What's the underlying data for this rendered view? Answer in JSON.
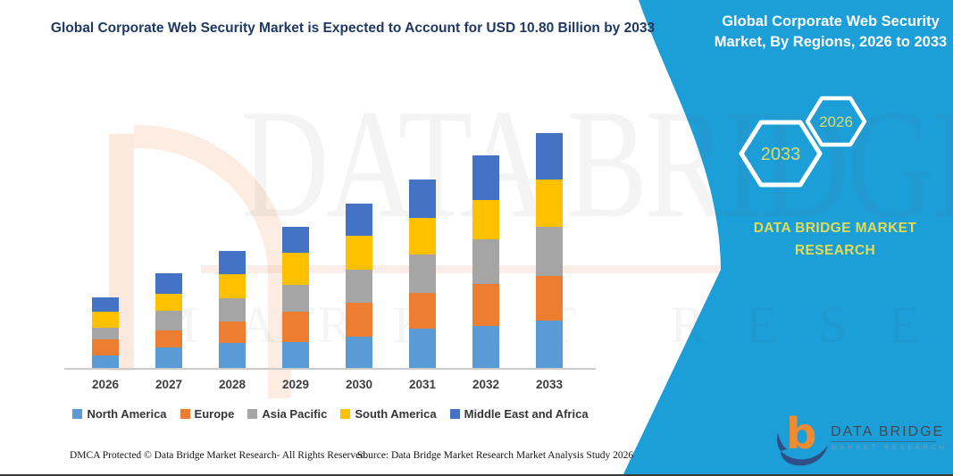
{
  "header": {
    "left_title": "Global Corporate Web Security Market is Expected to Account for USD 10.80 Billion by 2033",
    "right_title": "Global Corporate Web Security Market, By Regions, 2026 to 2033"
  },
  "side_panel": {
    "hexagons": [
      {
        "label": "2033"
      },
      {
        "label": "2026"
      }
    ],
    "brand_line1": "DATA BRIDGE MARKET",
    "brand_line2": "RESEARCH",
    "panel_color": "#1C9FD9",
    "hexagon_text_color": "#D8DC6C",
    "brand_text_color": "#E2DC55"
  },
  "chart_data": {
    "type": "bar",
    "stacked": true,
    "unit": "USD Billion",
    "title": "Global Corporate Web Security Market, By Regions, 2026 to 2033",
    "categories": [
      "2026",
      "2027",
      "2028",
      "2029",
      "2030",
      "2031",
      "2032",
      "2033"
    ],
    "series": [
      {
        "name": "North America",
        "color": "#5B9BD5",
        "values": [
          0.58,
          0.95,
          1.15,
          1.19,
          1.44,
          1.81,
          1.93,
          2.18
        ]
      },
      {
        "name": "Europe",
        "color": "#ED7D31",
        "values": [
          0.74,
          0.78,
          0.99,
          1.4,
          1.56,
          1.64,
          1.93,
          2.05
        ]
      },
      {
        "name": "Asia Pacific",
        "color": "#A5A5A5",
        "values": [
          0.53,
          0.89,
          1.07,
          1.23,
          1.52,
          1.77,
          2.05,
          2.26
        ]
      },
      {
        "name": "South America",
        "color": "#FFC000",
        "values": [
          0.74,
          0.78,
          1.11,
          1.48,
          1.56,
          1.68,
          1.81,
          2.18
        ]
      },
      {
        "name": "Middle East and Africa",
        "color": "#4472C4",
        "values": [
          0.66,
          0.95,
          1.07,
          1.19,
          1.48,
          1.77,
          2.05,
          2.13
        ]
      }
    ],
    "totals": [
      3.25,
      4.35,
      5.39,
      6.49,
      7.56,
      8.67,
      9.77,
      10.8
    ],
    "xlabel": "",
    "ylabel": "",
    "ylim": [
      0,
      10.8
    ],
    "y_axis_visible": false,
    "grid": false,
    "legend_position": "bottom"
  },
  "watermark": {
    "big_text": "DATA BRIDGE",
    "letters_text": "MARKET RESEARCH"
  },
  "footer": {
    "dmca": "DMCA Protected © Data Bridge Market Research-  All Rights Reserved.",
    "source": "Source: Data Bridge Market Research  Market Analysis Study 2026",
    "logo_title": "DATA BRIDGE",
    "logo_subtitle": "MARKET RESEARCH"
  }
}
